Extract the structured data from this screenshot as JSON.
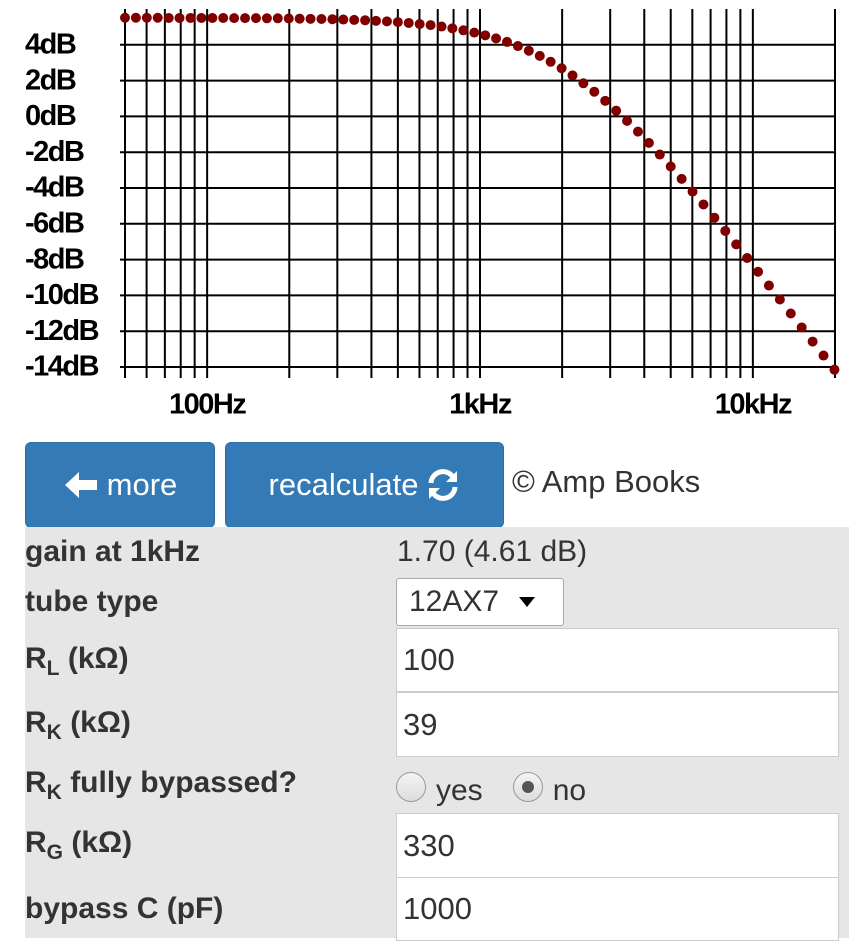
{
  "chart_data": {
    "type": "scatter",
    "color": "#800000",
    "log_x": true,
    "xlim": [
      50,
      20000
    ],
    "ylim": [
      -14,
      6
    ],
    "xticks": [
      {
        "value": 100,
        "label": "100Hz"
      },
      {
        "value": 1000,
        "label": "1kHz"
      },
      {
        "value": 10000,
        "label": "10kHz"
      }
    ],
    "xgrid": [
      50,
      60,
      70,
      80,
      90,
      100,
      200,
      300,
      400,
      500,
      600,
      700,
      800,
      900,
      1000,
      2000,
      3000,
      4000,
      5000,
      6000,
      7000,
      8000,
      9000,
      10000,
      20000
    ],
    "yticks": [
      {
        "value": -14,
        "label": "-14dB"
      },
      {
        "value": -12,
        "label": "-12dB"
      },
      {
        "value": -10,
        "label": "-10dB"
      },
      {
        "value": -8,
        "label": "-8dB"
      },
      {
        "value": -6,
        "label": "-6dB"
      },
      {
        "value": -4,
        "label": "-4dB"
      },
      {
        "value": -2,
        "label": "-2dB"
      },
      {
        "value": 0,
        "label": "0dB"
      },
      {
        "value": 2,
        "label": "2dB"
      },
      {
        "value": 4,
        "label": "4dB"
      }
    ],
    "x": [
      50,
      54.8,
      60.1,
      65.9,
      72.3,
      79.2,
      86.9,
      95.3,
      104.5,
      114.5,
      125.6,
      137.7,
      151,
      165.6,
      181.5,
      199.1,
      218.3,
      239.3,
      262.4,
      287.7,
      315.5,
      345.9,
      379.3,
      415.9,
      456,
      500,
      548,
      601,
      659,
      723,
      792,
      869,
      953,
      1045,
      1145,
      1256,
      1377,
      1510,
      1656,
      1815,
      1991,
      2183,
      2393,
      2624,
      2877,
      3155,
      3459,
      3793,
      4159,
      4560,
      5000,
      5483,
      6012,
      6592,
      7228,
      7924,
      8689,
      9528,
      10447,
      11454,
      12559,
      13771,
      15100,
      16557,
      18154,
      19905
    ],
    "values": [
      5.51,
      5.51,
      5.51,
      5.51,
      5.5,
      5.5,
      5.5,
      5.5,
      5.5,
      5.5,
      5.49,
      5.49,
      5.49,
      5.48,
      5.48,
      5.47,
      5.46,
      5.45,
      5.44,
      5.43,
      5.41,
      5.39,
      5.37,
      5.34,
      5.31,
      5.27,
      5.22,
      5.16,
      5.1,
      5.02,
      4.92,
      4.81,
      4.68,
      4.53,
      4.36,
      4.16,
      3.93,
      3.67,
      3.38,
      3.05,
      2.69,
      2.29,
      1.85,
      1.38,
      0.87,
      0.32,
      -0.25,
      -0.85,
      -1.48,
      -2.13,
      -2.8,
      -3.49,
      -4.2,
      -4.92,
      -5.66,
      -6.4,
      -7.15,
      -7.91,
      -8.68,
      -9.45,
      -10.23,
      -11.01,
      -11.79,
      -12.58,
      -13.36,
      -14.15
    ]
  },
  "buttons": [
    {
      "label": "more"
    },
    {
      "label": "recalculate"
    }
  ],
  "credit": "© Amp Books",
  "form": {
    "rows": [
      {
        "label": "gain at 1kHz",
        "value": "1.70 (4.61 dB)"
      },
      {
        "label": "tube type",
        "select": "12AX7"
      },
      {
        "label": "R",
        "sub": "L",
        "unit": "(kΩ)",
        "input": "100"
      },
      {
        "label": "R",
        "sub": "K",
        "unit": "(kΩ)",
        "input": "39"
      },
      {
        "label": "R",
        "sub": "K",
        "unit": "fully bypassed?",
        "options": [
          "yes",
          "no"
        ],
        "selected": 1
      },
      {
        "label": "R",
        "sub": "G",
        "unit": "(kΩ)",
        "input": "330"
      },
      {
        "label": "bypass C (pF)",
        "input": "1000"
      }
    ]
  }
}
